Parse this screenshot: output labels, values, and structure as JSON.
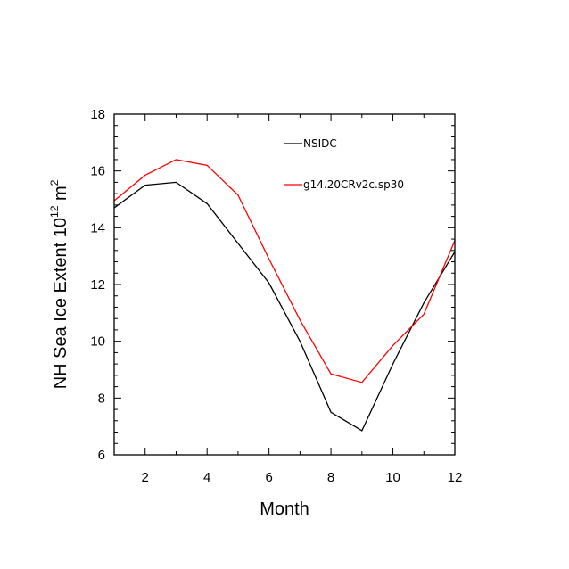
{
  "chart_data": {
    "type": "line",
    "xlabel": "Month",
    "ylabel": {
      "main": "NH Sea Ice Extent 10",
      "exp1": "12",
      "mid": " m",
      "exp2": "2"
    },
    "xlim": [
      1,
      12
    ],
    "ylim": [
      6,
      18
    ],
    "x_major_ticks": [
      2,
      4,
      6,
      8,
      10,
      12
    ],
    "x_tick_labels": [
      "2",
      "4",
      "6",
      "8",
      "10",
      "12"
    ],
    "y_major_ticks": [
      6,
      8,
      10,
      12,
      14,
      16,
      18
    ],
    "y_tick_labels": [
      "6",
      "8",
      "10",
      "12",
      "14",
      "16",
      "18"
    ],
    "legend_position": "inside-top-right",
    "grid": false,
    "x": [
      1,
      2,
      3,
      4,
      5,
      6,
      7,
      8,
      9,
      10,
      11,
      12
    ],
    "series": [
      {
        "name": "NSIDC",
        "color": "#000000",
        "values": [
          14.7,
          15.5,
          15.6,
          14.85,
          13.45,
          12.05,
          10.0,
          7.5,
          6.85,
          9.2,
          11.35,
          13.15
        ]
      },
      {
        "name": "g14.20CRv2c.sp30",
        "color": "#ff0000",
        "values": [
          14.95,
          15.85,
          16.4,
          16.2,
          15.15,
          12.9,
          10.75,
          8.85,
          8.55,
          9.85,
          10.95,
          13.55
        ]
      }
    ]
  }
}
